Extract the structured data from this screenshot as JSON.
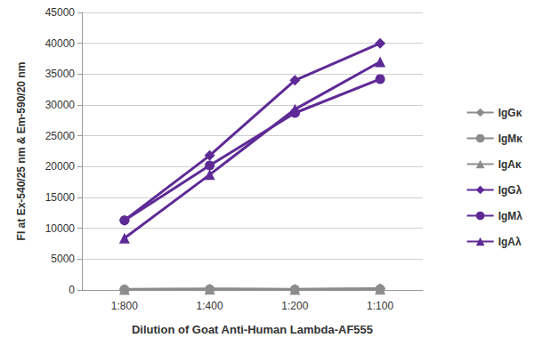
{
  "chart_data": {
    "type": "line",
    "x_label": "Dilution of Goat Anti-Human Lambda-AF555",
    "y_label": "FI at Ex-540/25 nm & Em-590/20 nm",
    "categories": [
      "1:800",
      "1:400",
      "1:200",
      "1:100"
    ],
    "series": [
      {
        "name": "IgGκ",
        "color": "#8c8c8c",
        "marker": "diamond",
        "values": [
          100,
          150,
          100,
          200
        ]
      },
      {
        "name": "IgMκ",
        "color": "#8c8c8c",
        "marker": "circle",
        "values": [
          80,
          120,
          80,
          150
        ]
      },
      {
        "name": "IgAκ",
        "color": "#8c8c8c",
        "marker": "triangle",
        "values": [
          60,
          100,
          60,
          120
        ]
      },
      {
        "name": "IgGλ",
        "color": "#5e2a96",
        "marker": "diamond",
        "values": [
          11300,
          21800,
          34000,
          40000
        ]
      },
      {
        "name": "IgMλ",
        "color": "#5e2a96",
        "marker": "circle",
        "values": [
          11300,
          20200,
          28700,
          34200
        ]
      },
      {
        "name": "IgAλ",
        "color": "#5e2a96",
        "marker": "triangle",
        "values": [
          8400,
          18700,
          29300,
          37000
        ]
      }
    ],
    "ylim": [
      0,
      45000
    ],
    "yticks": [
      0,
      5000,
      10000,
      15000,
      20000,
      25000,
      30000,
      35000,
      40000,
      45000
    ],
    "grid": true,
    "legend": "right"
  }
}
